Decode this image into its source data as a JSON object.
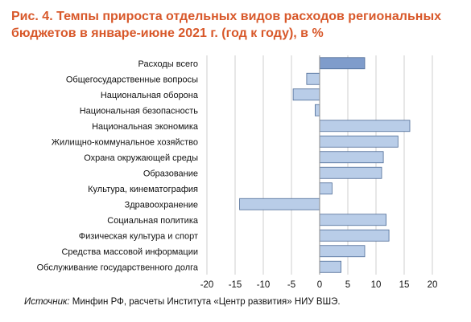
{
  "title": "Рис. 4. Темпы прироста отдельных видов расходов региональных бюджетов в январе-июне 2021 г. (год к году), в %",
  "source": {
    "label": "Источник:",
    "text": " Минфин РФ, расчеты Института «Центр развития» НИУ ВШЭ."
  },
  "colors": {
    "title": "#d8582a",
    "bar_fill": "#b9cde8",
    "bar_fill_highlight": "#7f9ccb",
    "bar_stroke": "#4d6b96",
    "grid": "#cfcfcf"
  },
  "chart_data": {
    "type": "bar",
    "orientation": "horizontal",
    "categories": [
      "Расходы всего",
      "Общегосударственные вопросы",
      "Национальная оборона",
      "Национальная безопасность",
      "Национальная экономика",
      "Жилищно-коммунальное хозяйство",
      "Охрана  окружающей среды",
      "Образование",
      "Культура, кинематография",
      "Здравоохранение",
      "Социальная политика",
      "Физическая культура и спорт",
      "Средства массовой информации",
      "Обслуживание государственного долга"
    ],
    "values": [
      8.0,
      -2.3,
      -4.7,
      -0.8,
      16.0,
      13.9,
      11.3,
      11.0,
      2.2,
      -14.2,
      11.8,
      12.3,
      8.0,
      3.8
    ],
    "xlim": [
      -20,
      20
    ],
    "xticks": [
      "-20",
      "-15",
      "-10",
      "-5",
      "0",
      "5",
      "10",
      "15",
      "20"
    ],
    "xtick_values": [
      -20,
      -15,
      -10,
      -5,
      0,
      5,
      10,
      15,
      20
    ],
    "grid": true,
    "highlight_index": 0
  }
}
